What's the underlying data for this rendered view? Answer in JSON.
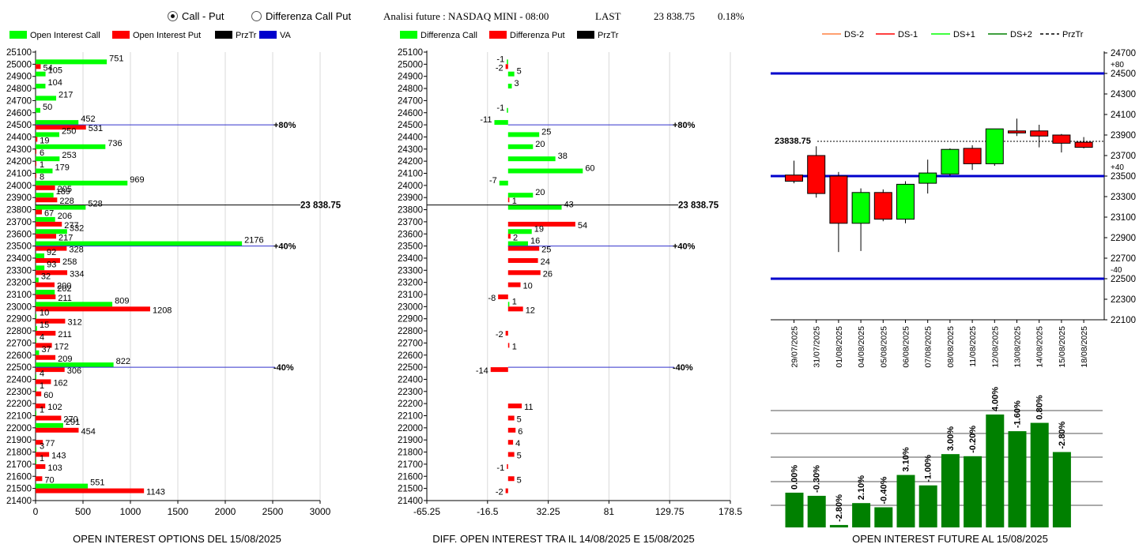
{
  "header": {
    "radio_call_put": "Call - Put",
    "radio_diff": "Differenza Call Put",
    "title": "Analisi future : NASDAQ MINI - 08:00",
    "last_label": "LAST",
    "last_value": "23 838.75",
    "change": "0.18%"
  },
  "colors": {
    "green": "#00ff00",
    "red": "#ff0000",
    "blue": "#0000cc",
    "dark_green": "#008000"
  },
  "panel1": {
    "legend": [
      "Open Interest Call",
      "Open Interest Put",
      "PrzTr",
      "VA"
    ],
    "caption": "OPEN INTEREST OPTIONS DEL 15/08/2025",
    "xticks": [
      "0",
      "500",
      "1000",
      "1500",
      "2000",
      "2500",
      "3000"
    ],
    "price_label": "23 838.75",
    "va_labels": [
      "+80%",
      "+40%",
      "-40%"
    ]
  },
  "panel2": {
    "legend": [
      "Differenza Call",
      "Differenza Put",
      "PrzTr"
    ],
    "caption": "DIFF. OPEN INTEREST TRA IL 14/08/2025 E 15/08/2025",
    "xticks": [
      "-65.25",
      "-16.5",
      "32.25",
      "81",
      "129.75",
      "178.5"
    ],
    "price_label": "23 838.75",
    "va_labels": [
      "+80%",
      "+40%",
      "-40%"
    ]
  },
  "panel3": {
    "legend": [
      "DS-2",
      "DS-1",
      "DS+1",
      "DS+2",
      "PrzTr"
    ],
    "price_label": "23838.75",
    "band_labels": [
      "+80",
      "+40",
      "-40"
    ],
    "yticks": [
      "24700",
      "24500",
      "24300",
      "24100",
      "23900",
      "23700",
      "23500",
      "23300",
      "23100",
      "22900",
      "22700",
      "22500",
      "22300",
      "22100"
    ]
  },
  "panel4": {
    "caption": "OPEN INTEREST FUTURE AL 15/08/2025"
  },
  "chart_data": [
    {
      "type": "bar",
      "title": "OPEN INTEREST OPTIONS DEL 15/08/2025",
      "orientation": "horizontal",
      "xlim": [
        0,
        3000
      ],
      "strikes": [
        25100,
        25000,
        24900,
        24800,
        24700,
        24600,
        24500,
        24400,
        24300,
        24200,
        24100,
        24000,
        23900,
        23800,
        23700,
        23600,
        23500,
        23400,
        23300,
        23200,
        23100,
        23000,
        22900,
        22800,
        22700,
        22600,
        22500,
        22400,
        22300,
        22200,
        22100,
        22000,
        21900,
        21800,
        21700,
        21600,
        21500,
        21400
      ],
      "series": [
        {
          "name": "Open Interest Call",
          "values": [
            0,
            751,
            105,
            104,
            217,
            50,
            452,
            250,
            736,
            253,
            179,
            969,
            189,
            528,
            206,
            332,
            2176,
            92,
            93,
            32,
            202,
            809,
            10,
            15,
            4,
            37,
            822,
            4,
            1,
            0,
            1,
            291,
            0,
            3,
            1,
            0,
            551,
            0
          ]
        },
        {
          "name": "Open Interest Put",
          "values": [
            0,
            54,
            0,
            0,
            0,
            0,
            531,
            19,
            6,
            1,
            8,
            205,
            228,
            67,
            277,
            217,
            328,
            258,
            334,
            200,
            211,
            1208,
            312,
            211,
            172,
            209,
            306,
            162,
            60,
            102,
            270,
            454,
            77,
            143,
            103,
            70,
            1143,
            0
          ]
        }
      ],
      "call_labels": [
        "",
        "751",
        "105",
        "104",
        "217",
        "50",
        "452",
        "250",
        "736",
        "253",
        "179",
        "969",
        "189",
        "528",
        "206",
        "332",
        "2176",
        "92",
        "93",
        "32",
        "202",
        "809",
        "10",
        "15",
        "4",
        "37",
        "822",
        "4",
        "1",
        "",
        "1",
        "291",
        "",
        "3",
        "1",
        "",
        "551",
        ""
      ],
      "put_labels": [
        "",
        "54",
        "",
        "",
        "",
        "",
        "531",
        "19",
        "6",
        "1",
        "8",
        "205",
        "228",
        "67",
        "277",
        "217",
        "328",
        "258",
        "334",
        "200",
        "211",
        "1208",
        "312",
        "211",
        "172",
        "209",
        "306",
        "162",
        "60",
        "102",
        "270",
        "454",
        "77",
        "143",
        "103",
        "70",
        "1143",
        ""
      ],
      "przTr": 23838.75,
      "va_lines": [
        {
          "strike": 24500,
          "label": "+80%"
        },
        {
          "strike": 23500,
          "label": "+40%"
        },
        {
          "strike": 22500,
          "label": "-40%"
        }
      ]
    },
    {
      "type": "bar",
      "title": "DIFF. OPEN INTEREST TRA IL 14/08/2025 E 15/08/2025",
      "orientation": "horizontal",
      "xlim": [
        -65.25,
        178.5
      ],
      "strikes": [
        25100,
        25000,
        24900,
        24800,
        24700,
        24600,
        24500,
        24400,
        24300,
        24200,
        24100,
        24000,
        23900,
        23800,
        23700,
        23600,
        23500,
        23400,
        23300,
        23200,
        23100,
        23000,
        22900,
        22800,
        22700,
        22600,
        22500,
        22400,
        22300,
        22200,
        22100,
        22000,
        21900,
        21800,
        21700,
        21600,
        21500,
        21400
      ],
      "series": [
        {
          "name": "Differenza Call",
          "values": [
            0,
            -1,
            5,
            3,
            0,
            -1,
            -11,
            25,
            20,
            38,
            60,
            -7,
            20,
            43,
            0,
            19,
            16,
            0,
            0,
            0,
            0,
            1,
            0,
            0,
            0,
            0,
            0,
            0,
            0,
            0,
            0,
            0,
            0,
            0,
            0,
            0,
            0,
            0
          ]
        },
        {
          "name": "Differenza Put",
          "values": [
            0,
            -2,
            0,
            0,
            0,
            0,
            0,
            0,
            0,
            0,
            0,
            0,
            1,
            0,
            54,
            2,
            25,
            24,
            26,
            10,
            -8,
            12,
            0,
            -2,
            1,
            0,
            -14,
            0,
            0,
            11,
            5,
            6,
            4,
            5,
            -1,
            5,
            -2,
            0
          ]
        }
      ],
      "call_labels": [
        "",
        "-1",
        "5",
        "3",
        "",
        "-1",
        "-11",
        "25",
        "20",
        "38",
        "60",
        "-7",
        "20",
        "43",
        "",
        "19",
        "16",
        "",
        "",
        "",
        "",
        "1",
        "",
        "",
        "",
        "",
        "",
        "",
        "",
        "",
        "",
        "",
        "",
        "",
        "",
        "",
        "",
        ""
      ],
      "put_labels": [
        "",
        "-2",
        "",
        "",
        "",
        "",
        "",
        "",
        "",
        "",
        "",
        "",
        "1",
        "",
        "54",
        "2",
        "25",
        "24",
        "26",
        "10",
        "-8",
        "12",
        "",
        "-2",
        "1",
        "",
        "-14",
        "",
        "",
        "11",
        "5",
        "6",
        "4",
        "5",
        "-1",
        "5",
        "-2",
        ""
      ],
      "przTr": 23838.75
    },
    {
      "type": "candlestick",
      "ylim": [
        22100,
        24700
      ],
      "dates": [
        "29/07/2025",
        "31/07/2025",
        "01/08/2025",
        "04/08/2025",
        "05/08/2025",
        "06/08/2025",
        "07/08/2025",
        "08/08/2025",
        "11/08/2025",
        "12/08/2025",
        "13/08/2025",
        "14/08/2025",
        "15/08/2025",
        "18/08/2025"
      ],
      "open": [
        23510,
        23700,
        23500,
        23040,
        23340,
        23080,
        23430,
        23520,
        23770,
        23620,
        23940,
        23940,
        23900,
        23830
      ],
      "close": [
        23450,
        23330,
        23040,
        23340,
        23080,
        23420,
        23530,
        23760,
        23620,
        23960,
        23920,
        23890,
        23820,
        23780
      ],
      "high": [
        23650,
        23790,
        23540,
        23380,
        23370,
        23450,
        23660,
        23770,
        23800,
        23960,
        24060,
        24000,
        23910,
        23880
      ],
      "low": [
        23430,
        23290,
        22760,
        22770,
        23060,
        23040,
        23330,
        23500,
        23560,
        23600,
        23890,
        23780,
        23730,
        23770
      ],
      "przTr": 23838.75,
      "bands": [
        {
          "level": 24500,
          "label": "+80"
        },
        {
          "level": 23500,
          "label": "+40"
        },
        {
          "level": 22500,
          "label": "-40"
        }
      ]
    },
    {
      "type": "bar",
      "title": "OPEN INTEREST FUTURE AL 15/08/2025",
      "categories": [
        "29/07/2025",
        "31/07/2025",
        "01/08/2025",
        "04/08/2025",
        "05/08/2025",
        "06/08/2025",
        "07/08/2025",
        "08/08/2025",
        "11/08/2025",
        "12/08/2025",
        "13/08/2025",
        "14/08/2025",
        "15/08/2025"
      ],
      "values": [
        100,
        99.7,
        96.9,
        99.0,
        98.6,
        101.7,
        100.7,
        103.7,
        103.5,
        107.5,
        105.9,
        106.7,
        103.9
      ],
      "labels": [
        "0.00%",
        "-0.30%",
        "-2.80%",
        "2.10%",
        "-0.40%",
        "3.10%",
        "-1.00%",
        "3.00%",
        "-0.20%",
        "4.00%",
        "-1.60%",
        "0.80%",
        "-2.80%"
      ]
    }
  ]
}
